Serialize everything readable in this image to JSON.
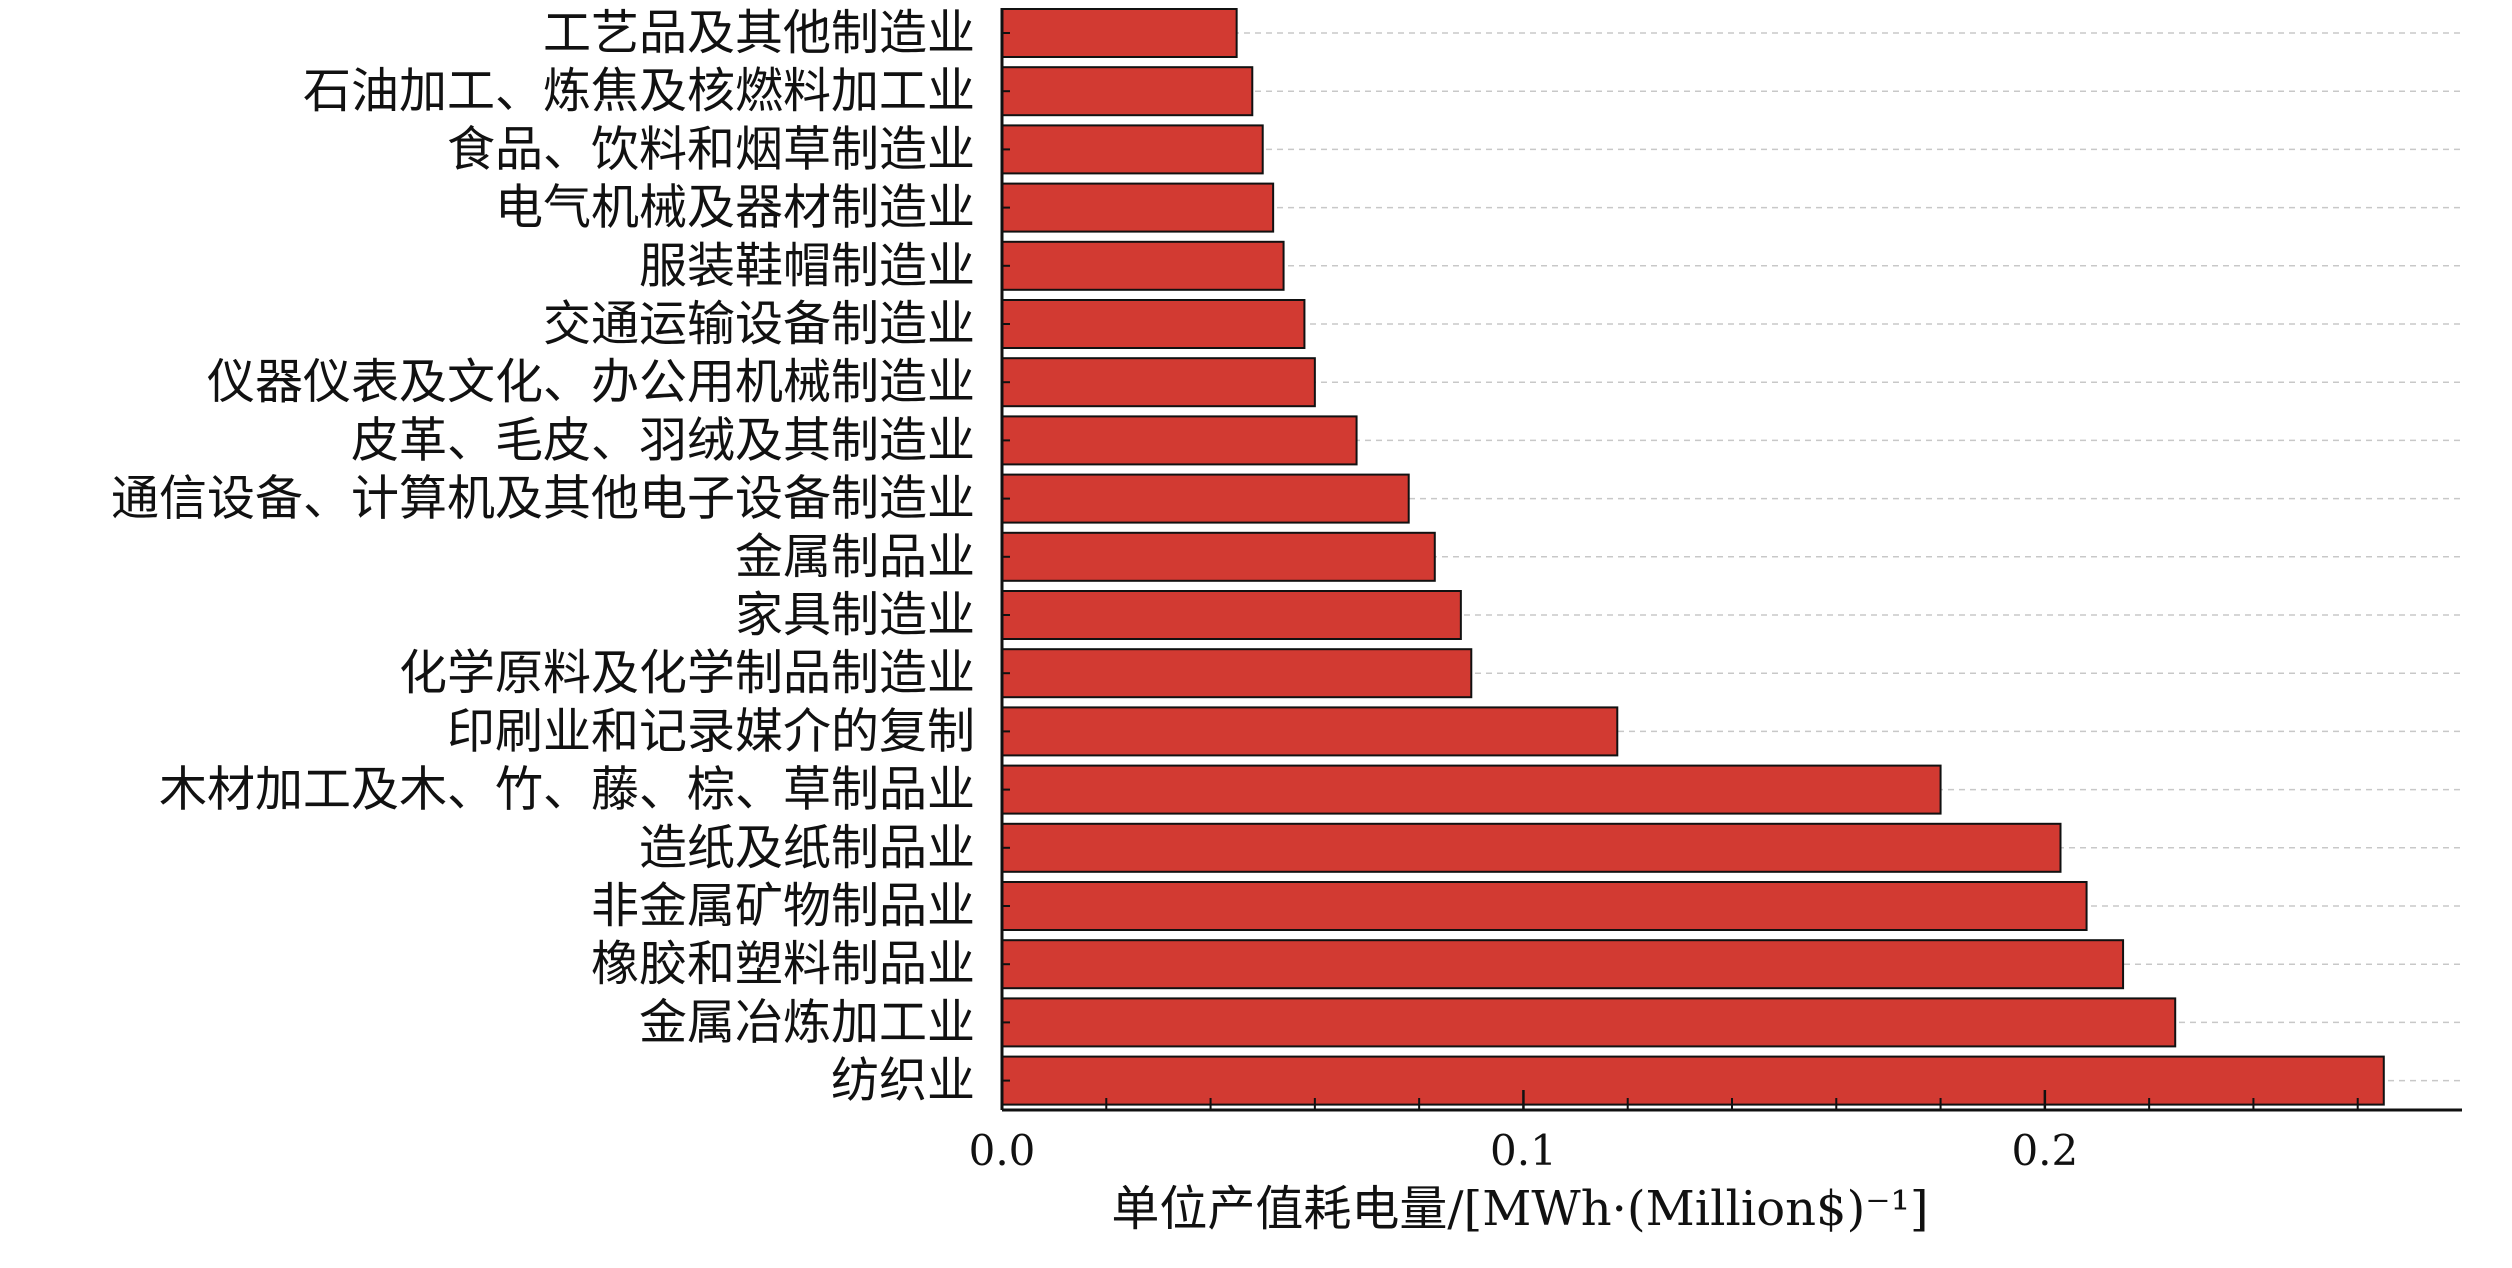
{
  "chart_data": {
    "type": "bar",
    "orientation": "horizontal",
    "categories": [
      "工艺品及其他制造业",
      "石油加工、炼焦及核燃料加工业",
      "食品、饮料和烟草制造业",
      "电气机械及器材制造业",
      "服装鞋帽制造业",
      "交通运输设备制造业",
      "仪器仪表及文化、办公用机械制造业",
      "皮革、毛皮、羽绒及其制造业",
      "通信设备、计算机及其他电子设备制造业",
      "金属制品业",
      "家具制造业",
      "化学原料及化学制品制造业",
      "印刷业和记录媒介的复制",
      "木材加工及木、竹、藤、棕、草制品业",
      "造纸及纸制品业",
      "非金属矿物制品业",
      "橡胶和塑料制品业",
      "金属冶炼加工业",
      "纺织业"
    ],
    "values": [
      0.045,
      0.048,
      0.05,
      0.052,
      0.054,
      0.058,
      0.06,
      0.068,
      0.078,
      0.083,
      0.088,
      0.09,
      0.118,
      0.18,
      0.203,
      0.208,
      0.215,
      0.225,
      0.265
    ],
    "xlim": [
      0.0,
      0.28
    ],
    "x_ticks": [
      "0.0",
      "0.1",
      "0.2"
    ],
    "x_tick_values": [
      0.0,
      0.1,
      0.2
    ],
    "x_minor_tick_step": 0.02,
    "xlabel": "单位产值耗电量/[MWh·(Million$)⁻¹]",
    "ylabel": "",
    "title": "",
    "grid": "horizontal dashed",
    "bar_color": "#d23a32",
    "bar_edge_color": "#111111"
  }
}
